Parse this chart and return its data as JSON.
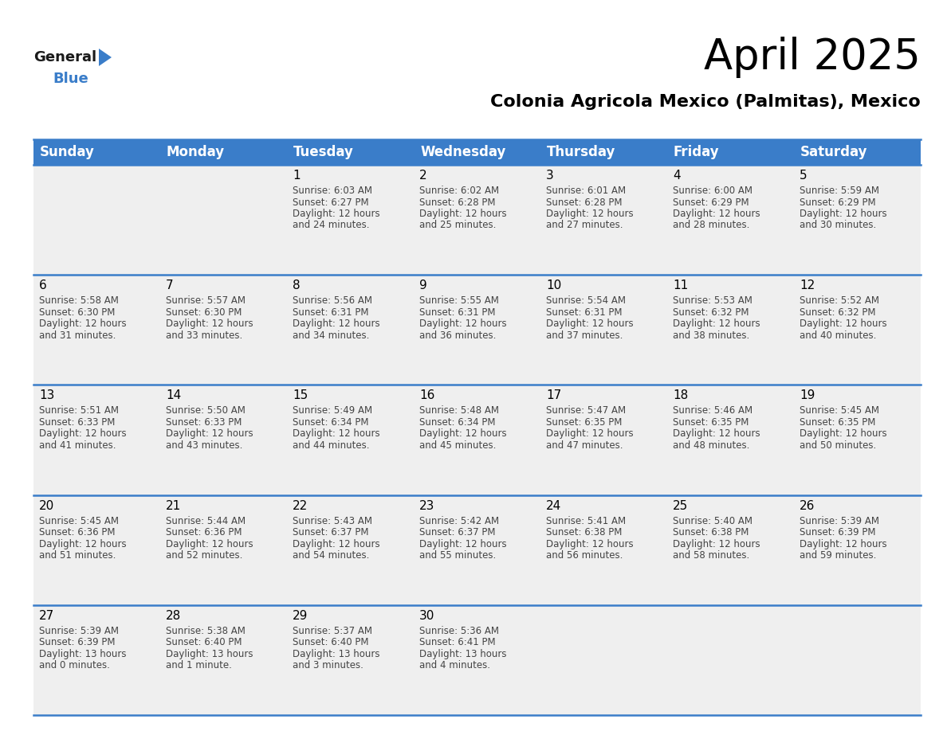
{
  "title": "April 2025",
  "subtitle": "Colonia Agricola Mexico (Palmitas), Mexico",
  "header_color": "#3A7DC9",
  "header_text_color": "#FFFFFF",
  "cell_bg_color": "#EFEFEF",
  "line_color": "#3A7DC9",
  "title_fontsize": 38,
  "subtitle_fontsize": 16,
  "day_name_fontsize": 12,
  "day_num_fontsize": 11,
  "cell_text_fontsize": 8.5,
  "days_of_week": [
    "Sunday",
    "Monday",
    "Tuesday",
    "Wednesday",
    "Thursday",
    "Friday",
    "Saturday"
  ],
  "weeks": [
    [
      {
        "day": "",
        "sunrise": "",
        "sunset": "",
        "daylight": ""
      },
      {
        "day": "",
        "sunrise": "",
        "sunset": "",
        "daylight": ""
      },
      {
        "day": "1",
        "sunrise": "Sunrise: 6:03 AM",
        "sunset": "Sunset: 6:27 PM",
        "daylight": "Daylight: 12 hours\nand 24 minutes."
      },
      {
        "day": "2",
        "sunrise": "Sunrise: 6:02 AM",
        "sunset": "Sunset: 6:28 PM",
        "daylight": "Daylight: 12 hours\nand 25 minutes."
      },
      {
        "day": "3",
        "sunrise": "Sunrise: 6:01 AM",
        "sunset": "Sunset: 6:28 PM",
        "daylight": "Daylight: 12 hours\nand 27 minutes."
      },
      {
        "day": "4",
        "sunrise": "Sunrise: 6:00 AM",
        "sunset": "Sunset: 6:29 PM",
        "daylight": "Daylight: 12 hours\nand 28 minutes."
      },
      {
        "day": "5",
        "sunrise": "Sunrise: 5:59 AM",
        "sunset": "Sunset: 6:29 PM",
        "daylight": "Daylight: 12 hours\nand 30 minutes."
      }
    ],
    [
      {
        "day": "6",
        "sunrise": "Sunrise: 5:58 AM",
        "sunset": "Sunset: 6:30 PM",
        "daylight": "Daylight: 12 hours\nand 31 minutes."
      },
      {
        "day": "7",
        "sunrise": "Sunrise: 5:57 AM",
        "sunset": "Sunset: 6:30 PM",
        "daylight": "Daylight: 12 hours\nand 33 minutes."
      },
      {
        "day": "8",
        "sunrise": "Sunrise: 5:56 AM",
        "sunset": "Sunset: 6:31 PM",
        "daylight": "Daylight: 12 hours\nand 34 minutes."
      },
      {
        "day": "9",
        "sunrise": "Sunrise: 5:55 AM",
        "sunset": "Sunset: 6:31 PM",
        "daylight": "Daylight: 12 hours\nand 36 minutes."
      },
      {
        "day": "10",
        "sunrise": "Sunrise: 5:54 AM",
        "sunset": "Sunset: 6:31 PM",
        "daylight": "Daylight: 12 hours\nand 37 minutes."
      },
      {
        "day": "11",
        "sunrise": "Sunrise: 5:53 AM",
        "sunset": "Sunset: 6:32 PM",
        "daylight": "Daylight: 12 hours\nand 38 minutes."
      },
      {
        "day": "12",
        "sunrise": "Sunrise: 5:52 AM",
        "sunset": "Sunset: 6:32 PM",
        "daylight": "Daylight: 12 hours\nand 40 minutes."
      }
    ],
    [
      {
        "day": "13",
        "sunrise": "Sunrise: 5:51 AM",
        "sunset": "Sunset: 6:33 PM",
        "daylight": "Daylight: 12 hours\nand 41 minutes."
      },
      {
        "day": "14",
        "sunrise": "Sunrise: 5:50 AM",
        "sunset": "Sunset: 6:33 PM",
        "daylight": "Daylight: 12 hours\nand 43 minutes."
      },
      {
        "day": "15",
        "sunrise": "Sunrise: 5:49 AM",
        "sunset": "Sunset: 6:34 PM",
        "daylight": "Daylight: 12 hours\nand 44 minutes."
      },
      {
        "day": "16",
        "sunrise": "Sunrise: 5:48 AM",
        "sunset": "Sunset: 6:34 PM",
        "daylight": "Daylight: 12 hours\nand 45 minutes."
      },
      {
        "day": "17",
        "sunrise": "Sunrise: 5:47 AM",
        "sunset": "Sunset: 6:35 PM",
        "daylight": "Daylight: 12 hours\nand 47 minutes."
      },
      {
        "day": "18",
        "sunrise": "Sunrise: 5:46 AM",
        "sunset": "Sunset: 6:35 PM",
        "daylight": "Daylight: 12 hours\nand 48 minutes."
      },
      {
        "day": "19",
        "sunrise": "Sunrise: 5:45 AM",
        "sunset": "Sunset: 6:35 PM",
        "daylight": "Daylight: 12 hours\nand 50 minutes."
      }
    ],
    [
      {
        "day": "20",
        "sunrise": "Sunrise: 5:45 AM",
        "sunset": "Sunset: 6:36 PM",
        "daylight": "Daylight: 12 hours\nand 51 minutes."
      },
      {
        "day": "21",
        "sunrise": "Sunrise: 5:44 AM",
        "sunset": "Sunset: 6:36 PM",
        "daylight": "Daylight: 12 hours\nand 52 minutes."
      },
      {
        "day": "22",
        "sunrise": "Sunrise: 5:43 AM",
        "sunset": "Sunset: 6:37 PM",
        "daylight": "Daylight: 12 hours\nand 54 minutes."
      },
      {
        "day": "23",
        "sunrise": "Sunrise: 5:42 AM",
        "sunset": "Sunset: 6:37 PM",
        "daylight": "Daylight: 12 hours\nand 55 minutes."
      },
      {
        "day": "24",
        "sunrise": "Sunrise: 5:41 AM",
        "sunset": "Sunset: 6:38 PM",
        "daylight": "Daylight: 12 hours\nand 56 minutes."
      },
      {
        "day": "25",
        "sunrise": "Sunrise: 5:40 AM",
        "sunset": "Sunset: 6:38 PM",
        "daylight": "Daylight: 12 hours\nand 58 minutes."
      },
      {
        "day": "26",
        "sunrise": "Sunrise: 5:39 AM",
        "sunset": "Sunset: 6:39 PM",
        "daylight": "Daylight: 12 hours\nand 59 minutes."
      }
    ],
    [
      {
        "day": "27",
        "sunrise": "Sunrise: 5:39 AM",
        "sunset": "Sunset: 6:39 PM",
        "daylight": "Daylight: 13 hours\nand 0 minutes."
      },
      {
        "day": "28",
        "sunrise": "Sunrise: 5:38 AM",
        "sunset": "Sunset: 6:40 PM",
        "daylight": "Daylight: 13 hours\nand 1 minute."
      },
      {
        "day": "29",
        "sunrise": "Sunrise: 5:37 AM",
        "sunset": "Sunset: 6:40 PM",
        "daylight": "Daylight: 13 hours\nand 3 minutes."
      },
      {
        "day": "30",
        "sunrise": "Sunrise: 5:36 AM",
        "sunset": "Sunset: 6:41 PM",
        "daylight": "Daylight: 13 hours\nand 4 minutes."
      },
      {
        "day": "",
        "sunrise": "",
        "sunset": "",
        "daylight": ""
      },
      {
        "day": "",
        "sunrise": "",
        "sunset": "",
        "daylight": ""
      },
      {
        "day": "",
        "sunrise": "",
        "sunset": "",
        "daylight": ""
      }
    ]
  ]
}
